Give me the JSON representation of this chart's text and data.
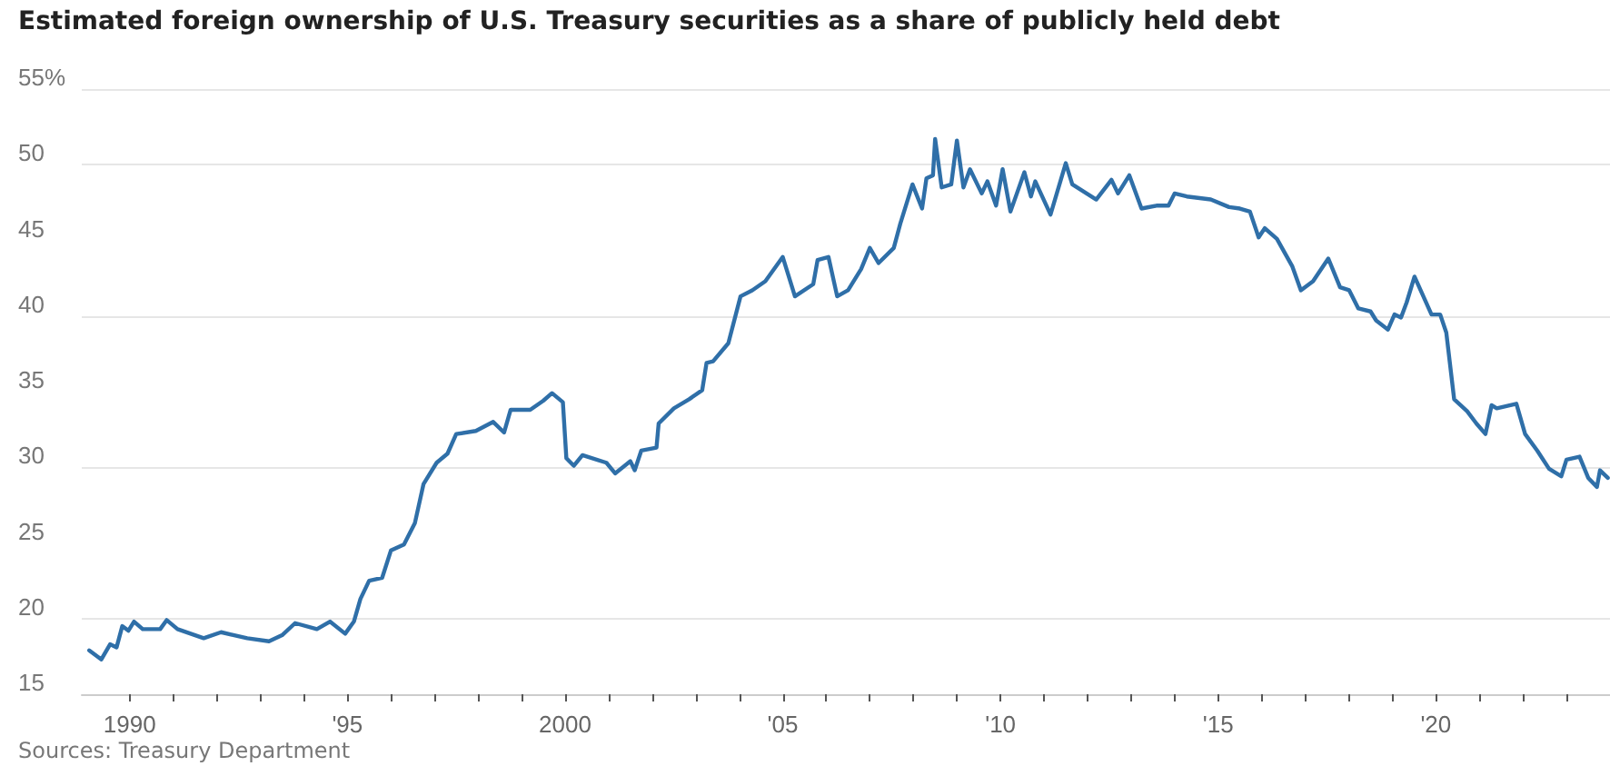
{
  "chart_data": {
    "type": "line",
    "title": "Estimated foreign ownership of U.S. Treasury securities as a share of publicly held debt",
    "annotations": [
      "Sources: Treasury Department"
    ],
    "x": [
      1989.07,
      1989.35,
      1989.55,
      1989.7,
      1989.83,
      1989.97,
      1990.1,
      1990.3,
      1990.7,
      1990.85,
      1991.1,
      1991.7,
      1992.1,
      1992.7,
      1993.2,
      1993.5,
      1993.8,
      1994.3,
      1994.6,
      1994.95,
      1995.15,
      1995.3,
      1995.5,
      1995.8,
      1996.0,
      1996.3,
      1996.55,
      1996.75,
      1997.05,
      1997.3,
      1997.5,
      1997.95,
      1998.35,
      1998.6,
      1998.75,
      1999.2,
      1999.5,
      1999.7,
      1999.95,
      2000.03,
      2000.2,
      2000.4,
      2000.95,
      2001.15,
      2001.5,
      2001.6,
      2001.75,
      2002.1,
      2002.15,
      2002.5,
      2002.85,
      2003.15,
      2003.25,
      2003.4,
      2003.75,
      2004.03,
      2004.3,
      2004.6,
      2005.0,
      2005.28,
      2005.7,
      2005.8,
      2006.05,
      2006.25,
      2006.5,
      2006.8,
      2007.0,
      2007.2,
      2007.55,
      2007.7,
      2007.98,
      2008.2,
      2008.3,
      2008.45,
      2008.5,
      2008.65,
      2008.87,
      2009.0,
      2009.15,
      2009.3,
      2009.57,
      2009.7,
      2009.9,
      2010.05,
      2010.23,
      2010.55,
      2010.7,
      2010.8,
      2011.15,
      2011.5,
      2011.65,
      2012.2,
      2012.55,
      2012.7,
      2012.96,
      2013.24,
      2013.6,
      2013.86,
      2014.0,
      2014.28,
      2014.83,
      2015.25,
      2015.5,
      2015.73,
      2015.93,
      2016.07,
      2016.35,
      2016.7,
      2016.9,
      2017.18,
      2017.53,
      2017.8,
      2018.01,
      2018.22,
      2018.5,
      2018.63,
      2018.9,
      2019.05,
      2019.2,
      2019.33,
      2019.51,
      2019.9,
      2020.1,
      2020.24,
      2020.42,
      2020.72,
      2020.93,
      2021.14,
      2021.28,
      2021.4,
      2021.85,
      2022.05,
      2022.33,
      2022.6,
      2022.88,
      2023.0,
      2023.3,
      2023.5,
      2023.7,
      2023.77,
      2023.95
    ],
    "series": [
      {
        "color": "#2f6fa8",
        "values": [
          17.9,
          17.3,
          18.3,
          18.1,
          19.5,
          19.2,
          19.8,
          19.3,
          19.3,
          19.9,
          19.3,
          18.7,
          19.1,
          18.7,
          18.5,
          18.9,
          19.7,
          19.3,
          19.8,
          19.0,
          19.8,
          21.3,
          22.5,
          22.7,
          24.5,
          24.9,
          26.3,
          28.9,
          30.3,
          30.9,
          32.2,
          32.4,
          33.0,
          32.3,
          33.8,
          33.8,
          34.4,
          34.9,
          34.3,
          30.6,
          30.1,
          30.8,
          30.3,
          29.6,
          30.4,
          29.8,
          31.1,
          31.3,
          32.9,
          33.9,
          34.5,
          35.1,
          36.9,
          37.0,
          38.2,
          41.3,
          41.7,
          42.3,
          43.9,
          41.3,
          42.1,
          43.7,
          43.9,
          41.3,
          41.7,
          43.1,
          44.5,
          43.5,
          44.5,
          46.1,
          48.7,
          47.1,
          49.1,
          49.3,
          51.7,
          48.5,
          48.7,
          51.6,
          48.5,
          49.7,
          48.1,
          48.9,
          47.3,
          49.7,
          46.9,
          49.5,
          47.9,
          48.9,
          46.7,
          50.1,
          48.7,
          47.7,
          49.0,
          48.1,
          49.3,
          47.1,
          47.3,
          47.3,
          48.1,
          47.9,
          47.7,
          47.2,
          47.1,
          46.9,
          45.2,
          45.8,
          45.1,
          43.3,
          41.7,
          42.3,
          43.8,
          41.9,
          41.7,
          40.5,
          40.3,
          39.7,
          39.1,
          40.1,
          39.9,
          40.9,
          42.6,
          40.1,
          40.1,
          38.9,
          34.5,
          33.7,
          32.9,
          32.2,
          34.1,
          33.9,
          34.2,
          32.2,
          31.1,
          29.9,
          29.4,
          30.5,
          30.7,
          29.3,
          28.7,
          29.8,
          29.3
        ]
      }
    ],
    "xlim": [
      1988.9,
      2024
    ],
    "xticks": [
      {
        "value": 1990,
        "label": "1990"
      },
      {
        "value": 1991,
        "label": null
      },
      {
        "value": 1992,
        "label": null
      },
      {
        "value": 1993,
        "label": null
      },
      {
        "value": 1994,
        "label": null
      },
      {
        "value": 1995,
        "label": "'95"
      },
      {
        "value": 1996,
        "label": null
      },
      {
        "value": 1997,
        "label": null
      },
      {
        "value": 1998,
        "label": null
      },
      {
        "value": 1999,
        "label": null
      },
      {
        "value": 2000,
        "label": "2000"
      },
      {
        "value": 2001,
        "label": null
      },
      {
        "value": 2002,
        "label": null
      },
      {
        "value": 2003,
        "label": null
      },
      {
        "value": 2004,
        "label": null
      },
      {
        "value": 2005,
        "label": "'05"
      },
      {
        "value": 2006,
        "label": null
      },
      {
        "value": 2007,
        "label": null
      },
      {
        "value": 2008,
        "label": null
      },
      {
        "value": 2009,
        "label": null
      },
      {
        "value": 2010,
        "label": "'10"
      },
      {
        "value": 2011,
        "label": null
      },
      {
        "value": 2012,
        "label": null
      },
      {
        "value": 2013,
        "label": null
      },
      {
        "value": 2014,
        "label": null
      },
      {
        "value": 2015,
        "label": "'15"
      },
      {
        "value": 2016,
        "label": null
      },
      {
        "value": 2017,
        "label": null
      },
      {
        "value": 2018,
        "label": null
      },
      {
        "value": 2019,
        "label": null
      },
      {
        "value": 2020,
        "label": "'20"
      },
      {
        "value": 2021,
        "label": null
      },
      {
        "value": 2022,
        "label": null
      },
      {
        "value": 2023,
        "label": null
      }
    ],
    "ylim": [
      15,
      55
    ],
    "yticks": [
      15,
      20,
      25,
      30,
      35,
      40,
      45,
      50,
      {
        "value": 55,
        "label": "55%"
      }
    ],
    "grid": "y",
    "marker": "none",
    "line_style": "solid"
  }
}
